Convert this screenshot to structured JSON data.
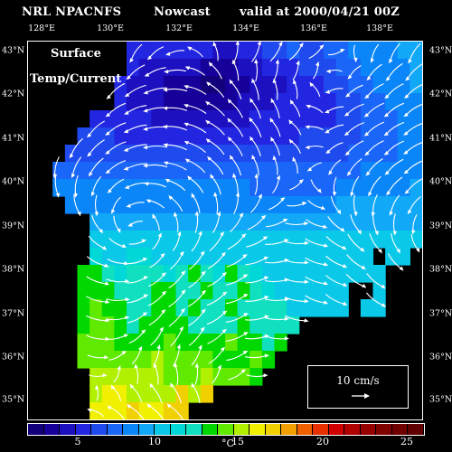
{
  "header": {
    "model": "NRL NPACNFS",
    "product": "Nowcast",
    "valid": "valid at 2000/04/21 00Z"
  },
  "overlay": {
    "line1": "Surface",
    "line2": "Temp/Current"
  },
  "axes": {
    "lon_labels": [
      "128°E",
      "130°E",
      "132°E",
      "134°E",
      "136°E",
      "138°E"
    ],
    "lat_labels": [
      "43°N",
      "42°N",
      "41°N",
      "40°N",
      "39°N",
      "38°N",
      "37°N",
      "36°N",
      "35°N"
    ]
  },
  "scale": {
    "label": "10 cm/s"
  },
  "colorbar": {
    "ticks": [
      "5",
      "10",
      "15",
      "20",
      "25"
    ],
    "unit": "°C",
    "colors": [
      "#12007a",
      "#16009a",
      "#1c10c0",
      "#2226e0",
      "#1e4aee",
      "#1a66f8",
      "#0a86f8",
      "#12a8f8",
      "#0ac8e8",
      "#00d8d8",
      "#10e0c0",
      "#00d800",
      "#60ea00",
      "#b0f000",
      "#f0f000",
      "#f0d000",
      "#f0a000",
      "#f06000",
      "#e83000",
      "#d00000",
      "#b00000",
      "#980000",
      "#800000",
      "#700000",
      "#600000"
    ],
    "land": "#000000",
    "arrow": "#ffffff"
  },
  "fields": {
    "temperature": [
      [
        null,
        null,
        null,
        null,
        null,
        null,
        null,
        null,
        4,
        4,
        4,
        4,
        4,
        4,
        4,
        3,
        3,
        4,
        4,
        5,
        5,
        6,
        5,
        5,
        6,
        6,
        7,
        7,
        7,
        7,
        8,
        8
      ],
      [
        null,
        null,
        null,
        null,
        null,
        null,
        null,
        null,
        4,
        3,
        3,
        3,
        3,
        3,
        2,
        2,
        2,
        3,
        3,
        4,
        4,
        4,
        5,
        5,
        5,
        6,
        6,
        7,
        7,
        7,
        7,
        8
      ],
      [
        null,
        null,
        null,
        null,
        null,
        null,
        null,
        4,
        3,
        3,
        3,
        2,
        2,
        2,
        1,
        1,
        2,
        2,
        3,
        3,
        3,
        4,
        4,
        4,
        5,
        5,
        6,
        6,
        7,
        7,
        7,
        8
      ],
      [
        null,
        null,
        null,
        null,
        null,
        null,
        null,
        4,
        3,
        3,
        3,
        2,
        2,
        2,
        2,
        2,
        2,
        3,
        3,
        3,
        4,
        4,
        4,
        4,
        4,
        5,
        5,
        6,
        6,
        7,
        7,
        7
      ],
      [
        null,
        null,
        null,
        null,
        null,
        4,
        4,
        4,
        4,
        4,
        3,
        3,
        3,
        3,
        3,
        3,
        3,
        3,
        4,
        4,
        4,
        4,
        4,
        4,
        4,
        5,
        5,
        6,
        6,
        6,
        7,
        7
      ],
      [
        null,
        null,
        null,
        null,
        5,
        5,
        5,
        4,
        4,
        4,
        4,
        4,
        4,
        4,
        4,
        4,
        4,
        4,
        4,
        4,
        4,
        4,
        5,
        5,
        5,
        5,
        5,
        6,
        6,
        6,
        7,
        7
      ],
      [
        null,
        null,
        null,
        5,
        5,
        5,
        5,
        5,
        5,
        5,
        5,
        5,
        5,
        5,
        5,
        5,
        5,
        5,
        5,
        5,
        5,
        5,
        5,
        5,
        5,
        5,
        6,
        6,
        6,
        6,
        7,
        7
      ],
      [
        null,
        null,
        6,
        6,
        6,
        6,
        6,
        6,
        6,
        6,
        6,
        6,
        6,
        6,
        6,
        6,
        6,
        6,
        6,
        6,
        6,
        6,
        6,
        6,
        6,
        6,
        6,
        7,
        7,
        7,
        7,
        7
      ],
      [
        null,
        null,
        7,
        7,
        7,
        7,
        7,
        7,
        7,
        7,
        7,
        7,
        7,
        7,
        7,
        7,
        7,
        7,
        6,
        6,
        6,
        6,
        6,
        6,
        6,
        7,
        7,
        7,
        7,
        7,
        7,
        8
      ],
      [
        null,
        null,
        null,
        7,
        7,
        7,
        7,
        7,
        7,
        7,
        7,
        7,
        7,
        7,
        7,
        7,
        7,
        7,
        7,
        7,
        7,
        7,
        7,
        7,
        7,
        8,
        8,
        8,
        8,
        8,
        8,
        8
      ],
      [
        null,
        null,
        null,
        null,
        null,
        8,
        8,
        8,
        8,
        8,
        8,
        8,
        8,
        8,
        8,
        8,
        8,
        8,
        8,
        8,
        8,
        8,
        8,
        8,
        8,
        8,
        8,
        8,
        8,
        8,
        8,
        8
      ],
      [
        null,
        null,
        null,
        null,
        null,
        9,
        9,
        9,
        9,
        9,
        9,
        9,
        9,
        9,
        9,
        9,
        9,
        9,
        9,
        9,
        9,
        9,
        9,
        9,
        9,
        9,
        9,
        9,
        9,
        9,
        9,
        9
      ],
      [
        null,
        null,
        null,
        null,
        null,
        10,
        9,
        9,
        10,
        10,
        9,
        9,
        9,
        9,
        9,
        9,
        9,
        9,
        9,
        9,
        9,
        9,
        9,
        9,
        9,
        9,
        9,
        9,
        null,
        9,
        9,
        null
      ],
      [
        null,
        null,
        null,
        null,
        12,
        12,
        11,
        10,
        11,
        11,
        11,
        10,
        11,
        12,
        11,
        10,
        12,
        11,
        10,
        9,
        9,
        9,
        9,
        9,
        9,
        9,
        9,
        9,
        9,
        null,
        null,
        null
      ],
      [
        null,
        null,
        null,
        null,
        12,
        12,
        12,
        11,
        11,
        11,
        12,
        12,
        11,
        11,
        12,
        11,
        11,
        12,
        11,
        10,
        9,
        9,
        9,
        9,
        9,
        9,
        null,
        null,
        9,
        null,
        null,
        null
      ],
      [
        null,
        null,
        null,
        null,
        12,
        13,
        12,
        12,
        11,
        11,
        12,
        12,
        11,
        12,
        11,
        11,
        12,
        11,
        11,
        11,
        11,
        9,
        9,
        9,
        9,
        9,
        null,
        9,
        9,
        null,
        null,
        null
      ],
      [
        null,
        null,
        null,
        null,
        12,
        13,
        13,
        12,
        11,
        12,
        12,
        12,
        12,
        11,
        11,
        11,
        11,
        12,
        11,
        11,
        11,
        11,
        null,
        null,
        null,
        null,
        null,
        null,
        null,
        null,
        null,
        null
      ],
      [
        null,
        null,
        null,
        null,
        13,
        13,
        13,
        12,
        12,
        12,
        12,
        13,
        12,
        12,
        12,
        12,
        13,
        12,
        12,
        11,
        12,
        null,
        null,
        null,
        null,
        null,
        null,
        null,
        null,
        null,
        null,
        null
      ],
      [
        null,
        null,
        null,
        null,
        13,
        13,
        13,
        13,
        13,
        13,
        14,
        13,
        13,
        13,
        13,
        12,
        12,
        12,
        13,
        12,
        null,
        null,
        null,
        null,
        null,
        null,
        null,
        null,
        null,
        null,
        null,
        null
      ],
      [
        null,
        null,
        null,
        null,
        null,
        14,
        14,
        14,
        14,
        14,
        14,
        13,
        13,
        13,
        14,
        13,
        13,
        13,
        12,
        null,
        null,
        null,
        null,
        null,
        null,
        null,
        null,
        null,
        null,
        null,
        null,
        null
      ],
      [
        null,
        null,
        null,
        null,
        null,
        14,
        15,
        15,
        14,
        14,
        14,
        14,
        16,
        14,
        16,
        null,
        null,
        null,
        null,
        null,
        null,
        null,
        null,
        null,
        null,
        null,
        null,
        null,
        null,
        null,
        null,
        null
      ],
      [
        null,
        null,
        null,
        null,
        null,
        15,
        15,
        15,
        16,
        15,
        15,
        16,
        16,
        null,
        null,
        null,
        null,
        null,
        null,
        null,
        null,
        null,
        null,
        null,
        null,
        null,
        null,
        null,
        null,
        null,
        null,
        null
      ]
    ]
  }
}
